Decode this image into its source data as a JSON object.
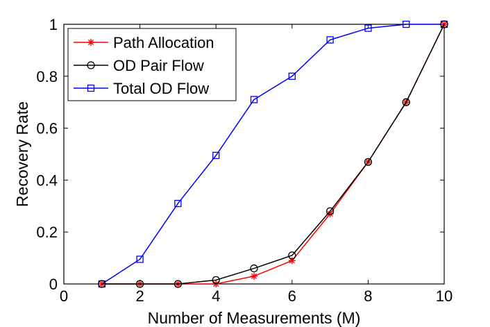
{
  "chart_data": {
    "type": "line",
    "xlabel": "Number of Measurements (M)",
    "ylabel": "Recovery Rate",
    "xlim": [
      0,
      10
    ],
    "ylim": [
      0,
      1
    ],
    "xticks": [
      0,
      2,
      4,
      6,
      8,
      10
    ],
    "yticks": [
      0,
      0.2,
      0.4,
      0.6,
      0.8,
      1
    ],
    "xtick_labels": [
      "0",
      "2",
      "4",
      "6",
      "8",
      "10"
    ],
    "ytick_labels": [
      "0",
      "0.2",
      "0.4",
      "0.6",
      "0.8",
      "1"
    ],
    "grid": false,
    "legend_position": "top-left",
    "series": [
      {
        "name": "Path Allocation",
        "color": "#ff0000",
        "marker": "asterisk",
        "x": [
          1,
          2,
          3,
          4,
          5,
          6,
          7,
          8,
          9,
          10
        ],
        "values": [
          0,
          0,
          0,
          0,
          0.03,
          0.09,
          0.27,
          0.47,
          0.7,
          1.0
        ]
      },
      {
        "name": "OD Pair Flow",
        "color": "#000000",
        "marker": "circle",
        "x": [
          1,
          2,
          3,
          4,
          5,
          6,
          7,
          8,
          9,
          10
        ],
        "values": [
          0,
          0,
          0,
          0.015,
          0.06,
          0.11,
          0.28,
          0.47,
          0.7,
          1.0
        ]
      },
      {
        "name": "Total OD Flow",
        "color": "#0000ff",
        "marker": "square",
        "x": [
          1,
          2,
          3,
          4,
          5,
          6,
          7,
          8,
          9,
          10
        ],
        "values": [
          0,
          0.095,
          0.31,
          0.495,
          0.71,
          0.8,
          0.94,
          0.985,
          1.0,
          1.0
        ]
      }
    ]
  }
}
